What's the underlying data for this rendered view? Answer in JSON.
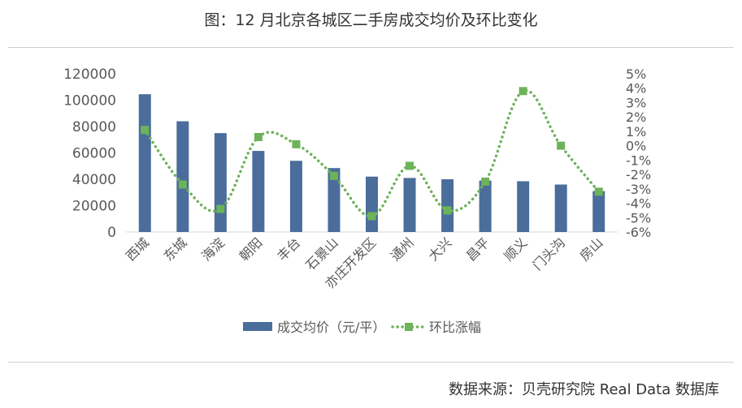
{
  "title": "图：12 月北京各城区二手房成交均价及环比变化",
  "source": "数据来源：贝壳研究院 Real Data 数据库",
  "chart_data": {
    "type": "bar",
    "categories": [
      "西城",
      "东城",
      "海淀",
      "朝阳",
      "丰台",
      "石景山",
      "亦庄开发区",
      "通州",
      "大兴",
      "昌平",
      "顺义",
      "门头沟",
      "房山"
    ],
    "series": [
      {
        "name": "成交均价（元/平）",
        "type": "bar",
        "axis": "left",
        "color": "#4a6d9b",
        "values": [
          104500,
          84000,
          75000,
          61500,
          54000,
          48500,
          42000,
          41000,
          40000,
          39000,
          38500,
          36000,
          31000
        ]
      },
      {
        "name": "环比涨幅",
        "type": "line",
        "axis": "right",
        "color": "#6db35a",
        "style": "dotted",
        "marker": "square",
        "values": [
          1.1,
          -2.7,
          -4.4,
          0.6,
          0.1,
          -2.1,
          -4.9,
          -1.4,
          -4.5,
          -2.5,
          3.8,
          0.0,
          -3.2
        ]
      }
    ],
    "y_left": {
      "min": 0,
      "max": 120000,
      "ticks": [
        "0",
        "20000",
        "40000",
        "60000",
        "80000",
        "100000",
        "120000"
      ]
    },
    "y_right": {
      "min": -6,
      "max": 5,
      "ticks": [
        "-6%",
        "-5%",
        "-4%",
        "-3%",
        "-2%",
        "-1%",
        "0%",
        "1%",
        "2%",
        "3%",
        "4%",
        "5%"
      ]
    },
    "grid": false,
    "legend_position": "bottom"
  }
}
